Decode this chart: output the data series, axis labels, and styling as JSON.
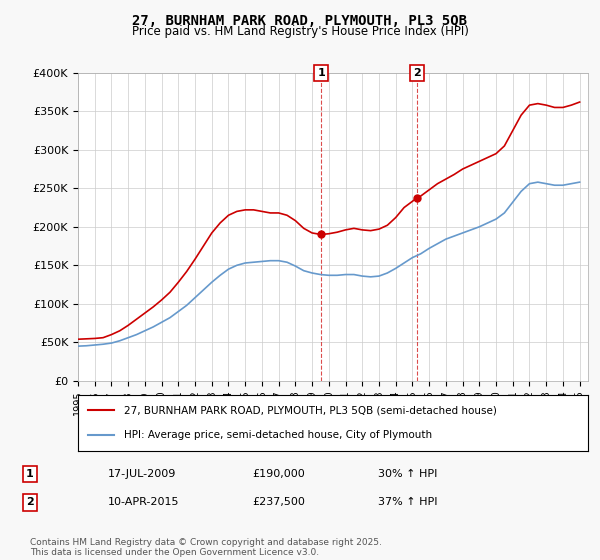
{
  "title": "27, BURNHAM PARK ROAD, PLYMOUTH, PL3 5QB",
  "subtitle": "Price paid vs. HM Land Registry's House Price Index (HPI)",
  "legend_label_red": "27, BURNHAM PARK ROAD, PLYMOUTH, PL3 5QB (semi-detached house)",
  "legend_label_blue": "HPI: Average price, semi-detached house, City of Plymouth",
  "footnote": "Contains HM Land Registry data © Crown copyright and database right 2025.\nThis data is licensed under the Open Government Licence v3.0.",
  "ylabel": "",
  "xlim_start": 1995.0,
  "xlim_end": 2025.5,
  "ylim_min": 0,
  "ylim_max": 400000,
  "yticks": [
    0,
    50000,
    100000,
    150000,
    200000,
    250000,
    300000,
    350000,
    400000
  ],
  "ytick_labels": [
    "£0",
    "£50K",
    "£100K",
    "£150K",
    "£200K",
    "£250K",
    "£300K",
    "£350K",
    "£400K"
  ],
  "background_color": "#f8f8f8",
  "plot_bg_color": "#ffffff",
  "red_color": "#cc0000",
  "blue_color": "#6699cc",
  "vline_color": "#cc0000",
  "marker1_year": 2009.54,
  "marker2_year": 2015.27,
  "sale1": {
    "date": "17-JUL-2009",
    "price": 190000,
    "hpi_change": "30% ↑ HPI"
  },
  "sale2": {
    "date": "10-APR-2015",
    "price": 237500,
    "hpi_change": "37% ↑ HPI"
  },
  "red_x": [
    1995.0,
    1995.5,
    1996.0,
    1996.5,
    1997.0,
    1997.5,
    1998.0,
    1998.5,
    1999.0,
    1999.5,
    2000.0,
    2000.5,
    2001.0,
    2001.5,
    2002.0,
    2002.5,
    2003.0,
    2003.5,
    2004.0,
    2004.5,
    2005.0,
    2005.5,
    2006.0,
    2006.5,
    2007.0,
    2007.5,
    2008.0,
    2008.5,
    2009.0,
    2009.54,
    2010.0,
    2010.5,
    2011.0,
    2011.5,
    2012.0,
    2012.5,
    2013.0,
    2013.5,
    2014.0,
    2014.5,
    2015.27,
    2015.5,
    2016.0,
    2016.5,
    2017.0,
    2017.5,
    2018.0,
    2018.5,
    2019.0,
    2019.5,
    2020.0,
    2020.5,
    2021.0,
    2021.5,
    2022.0,
    2022.5,
    2023.0,
    2023.5,
    2024.0,
    2024.5,
    2025.0
  ],
  "red_y": [
    54000,
    54500,
    55000,
    56000,
    60000,
    65000,
    72000,
    80000,
    88000,
    96000,
    105000,
    115000,
    128000,
    142000,
    158000,
    175000,
    192000,
    205000,
    215000,
    220000,
    222000,
    222000,
    220000,
    218000,
    218000,
    215000,
    208000,
    198000,
    192000,
    190000,
    191000,
    193000,
    196000,
    198000,
    196000,
    195000,
    197000,
    202000,
    212000,
    225000,
    237500,
    240000,
    248000,
    256000,
    262000,
    268000,
    275000,
    280000,
    285000,
    290000,
    295000,
    305000,
    325000,
    345000,
    358000,
    360000,
    358000,
    355000,
    355000,
    358000,
    362000
  ],
  "blue_x": [
    1995.0,
    1995.5,
    1996.0,
    1996.5,
    1997.0,
    1997.5,
    1998.0,
    1998.5,
    1999.0,
    1999.5,
    2000.0,
    2000.5,
    2001.0,
    2001.5,
    2002.0,
    2002.5,
    2003.0,
    2003.5,
    2004.0,
    2004.5,
    2005.0,
    2005.5,
    2006.0,
    2006.5,
    2007.0,
    2007.5,
    2008.0,
    2008.5,
    2009.0,
    2009.5,
    2010.0,
    2010.5,
    2011.0,
    2011.5,
    2012.0,
    2012.5,
    2013.0,
    2013.5,
    2014.0,
    2014.5,
    2015.0,
    2015.5,
    2016.0,
    2016.5,
    2017.0,
    2017.5,
    2018.0,
    2018.5,
    2019.0,
    2019.5,
    2020.0,
    2020.5,
    2021.0,
    2021.5,
    2022.0,
    2022.5,
    2023.0,
    2023.5,
    2024.0,
    2024.5,
    2025.0
  ],
  "blue_y": [
    45000,
    45500,
    46500,
    47500,
    49000,
    52000,
    56000,
    60000,
    65000,
    70000,
    76000,
    82000,
    90000,
    98000,
    108000,
    118000,
    128000,
    137000,
    145000,
    150000,
    153000,
    154000,
    155000,
    156000,
    156000,
    154000,
    149000,
    143000,
    140000,
    138000,
    137000,
    137000,
    138000,
    138000,
    136000,
    135000,
    136000,
    140000,
    146000,
    153000,
    160000,
    165000,
    172000,
    178000,
    184000,
    188000,
    192000,
    196000,
    200000,
    205000,
    210000,
    218000,
    232000,
    246000,
    256000,
    258000,
    256000,
    254000,
    254000,
    256000,
    258000
  ]
}
